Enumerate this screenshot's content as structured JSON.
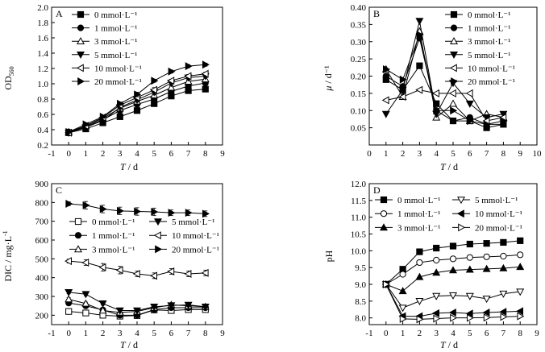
{
  "chart_data": [
    {
      "panel": "A",
      "type": "line",
      "xlabel_base": "T",
      "xlabel_unit": " / d",
      "ylabel_base": "OD",
      "ylabel_sub": "560",
      "xlim": [
        -1,
        9
      ],
      "ylim": [
        0.2,
        2.0
      ],
      "xticks": [
        -1,
        0,
        1,
        2,
        3,
        4,
        5,
        6,
        7,
        8,
        9
      ],
      "yticks": [
        0.2,
        0.4,
        0.6,
        0.8,
        1.0,
        1.2,
        1.4,
        1.6,
        1.8,
        2.0
      ],
      "ytick_decimals": 1,
      "legend_position": "top-left",
      "x": [
        0,
        1,
        2,
        3,
        4,
        5,
        6,
        7,
        8
      ],
      "series": [
        {
          "name": "0 mmol·L⁻¹",
          "marker": "square-filled",
          "values": [
            0.36,
            0.41,
            0.49,
            0.57,
            0.65,
            0.74,
            0.84,
            0.91,
            0.93
          ],
          "errors": [
            0.02,
            0.02,
            0.02,
            0.03,
            0.03,
            0.03,
            0.02,
            0.03,
            0.02
          ]
        },
        {
          "name": "1 mmol·L⁻¹",
          "marker": "circle-filled",
          "values": [
            0.37,
            0.44,
            0.53,
            0.65,
            0.73,
            0.8,
            0.9,
            0.97,
            1.01
          ],
          "errors": [
            0.02,
            0.02,
            0.02,
            0.03,
            0.03,
            0.03,
            0.02,
            0.02,
            0.02
          ]
        },
        {
          "name": "3 mmol·L⁻¹",
          "marker": "triangle-up-open",
          "values": [
            0.37,
            0.45,
            0.55,
            0.68,
            0.77,
            0.85,
            0.95,
            1.03,
            1.06
          ],
          "errors": [
            0.02,
            0.02,
            0.02,
            0.02,
            0.03,
            0.03,
            0.02,
            0.02,
            0.02
          ]
        },
        {
          "name": "5 mmol·L⁻¹",
          "marker": "triangle-down-filled",
          "values": [
            0.36,
            0.43,
            0.52,
            0.69,
            0.79,
            0.89,
            1.01,
            1.08,
            1.1
          ],
          "errors": [
            0.02,
            0.02,
            0.02,
            0.02,
            0.03,
            0.03,
            0.03,
            0.02,
            0.02
          ]
        },
        {
          "name": "10 mmol·L⁻¹",
          "marker": "triangle-left-open",
          "values": [
            0.36,
            0.45,
            0.56,
            0.72,
            0.82,
            0.92,
            1.04,
            1.1,
            1.13
          ],
          "errors": [
            0.02,
            0.02,
            0.02,
            0.02,
            0.03,
            0.03,
            0.02,
            0.02,
            0.02
          ]
        },
        {
          "name": "20 mmol·L⁻¹",
          "marker": "triangle-right-filled",
          "values": [
            0.37,
            0.47,
            0.57,
            0.74,
            0.86,
            1.04,
            1.16,
            1.23,
            1.25
          ],
          "errors": [
            0.02,
            0.02,
            0.02,
            0.02,
            0.03,
            0.02,
            0.02,
            0.02,
            0.02
          ]
        }
      ]
    },
    {
      "panel": "B",
      "type": "line",
      "xlabel_base": "T",
      "xlabel_unit": " / d",
      "ylabel_base": "μ",
      "ylabel_unit": " / d⁻¹",
      "xlim": [
        0,
        10
      ],
      "ylim": [
        0.0,
        0.4
      ],
      "xticks": [
        0,
        1,
        2,
        3,
        4,
        5,
        6,
        7,
        8,
        9,
        10
      ],
      "yticks": [
        0.05,
        0.1,
        0.15,
        0.2,
        0.25,
        0.3,
        0.35,
        0.4
      ],
      "ytick_decimals": 2,
      "legend_position": "top-right",
      "x": [
        1,
        2,
        3,
        4,
        5,
        6,
        7,
        8
      ],
      "series": [
        {
          "name": "0 mmol·L⁻¹",
          "marker": "square-filled",
          "values": [
            0.19,
            0.16,
            0.23,
            0.12,
            0.07,
            0.07,
            0.05,
            0.06
          ]
        },
        {
          "name": "1 mmol·L⁻¹",
          "marker": "circle-filled",
          "values": [
            0.2,
            0.17,
            0.31,
            0.1,
            0.07,
            0.08,
            0.06,
            0.06
          ]
        },
        {
          "name": "3 mmol·L⁻¹",
          "marker": "triangle-up-open",
          "values": [
            0.22,
            0.14,
            0.33,
            0.08,
            0.12,
            0.07,
            0.09,
            0.08
          ]
        },
        {
          "name": "5 mmol·L⁻¹",
          "marker": "triangle-down-filled",
          "values": [
            0.09,
            0.16,
            0.36,
            0.09,
            0.18,
            0.12,
            0.08,
            0.09
          ]
        },
        {
          "name": "10 mmol·L⁻¹",
          "marker": "triangle-left-open",
          "values": [
            0.13,
            0.14,
            0.16,
            0.15,
            0.15,
            0.15,
            0.07,
            0.08
          ]
        },
        {
          "name": "20 mmol·L⁻¹",
          "marker": "triangle-right-filled",
          "values": [
            0.22,
            0.19,
            0.32,
            0.1,
            0.1,
            0.07,
            0.06,
            0.07
          ]
        }
      ]
    },
    {
      "panel": "C",
      "type": "line",
      "xlabel_base": "T",
      "xlabel_unit": " / d",
      "ylabel_base": "DIC / mg·L",
      "ylabel_sup": "-1",
      "xlim": [
        -1,
        9
      ],
      "ylim": [
        150,
        900
      ],
      "xticks": [
        -1,
        0,
        1,
        2,
        3,
        4,
        5,
        6,
        7,
        8,
        9
      ],
      "yticks": [
        200,
        300,
        400,
        500,
        600,
        700,
        800,
        900
      ],
      "ytick_decimals": 0,
      "legend_position": "center",
      "x": [
        0,
        1,
        2,
        3,
        4,
        5,
        6,
        7,
        8
      ],
      "series": [
        {
          "name": "0 mmol·L⁻¹",
          "marker": "square-open",
          "values": [
            220,
            212,
            200,
            195,
            198,
            228,
            225,
            230,
            230
          ],
          "errors": [
            8,
            8,
            8,
            8,
            8,
            8,
            8,
            8,
            8
          ]
        },
        {
          "name": "1 mmol·L⁻¹",
          "marker": "circle-filled",
          "values": [
            265,
            250,
            228,
            200,
            200,
            230,
            240,
            240,
            240
          ],
          "errors": [
            8,
            8,
            8,
            8,
            8,
            8,
            8,
            8,
            8
          ]
        },
        {
          "name": "3 mmol·L⁻¹",
          "marker": "triangle-up-open",
          "values": [
            285,
            262,
            225,
            215,
            220,
            240,
            255,
            250,
            245
          ],
          "errors": [
            8,
            8,
            8,
            8,
            8,
            8,
            8,
            8,
            8
          ]
        },
        {
          "name": "5 mmol·L⁻¹",
          "marker": "triangle-down-filled",
          "values": [
            322,
            312,
            262,
            225,
            225,
            245,
            252,
            255,
            245
          ],
          "errors": [
            8,
            8,
            8,
            8,
            8,
            8,
            8,
            8,
            8
          ]
        },
        {
          "name": "10 mmol·L⁻¹",
          "marker": "triangle-left-open",
          "values": [
            488,
            480,
            455,
            440,
            420,
            410,
            433,
            420,
            425
          ],
          "errors": [
            10,
            15,
            20,
            20,
            15,
            15,
            15,
            15,
            15
          ]
        },
        {
          "name": "20 mmol·L⁻¹",
          "marker": "triangle-right-filled",
          "values": [
            793,
            785,
            765,
            755,
            752,
            750,
            745,
            745,
            740
          ],
          "errors": [
            10,
            20,
            20,
            20,
            20,
            20,
            15,
            15,
            15
          ]
        }
      ]
    },
    {
      "panel": "D",
      "type": "line",
      "xlabel_base": "T",
      "xlabel_unit": " / d",
      "ylabel_base": "pH",
      "xlim": [
        -1,
        9
      ],
      "ylim": [
        7.8,
        12.0
      ],
      "xticks": [
        -1,
        0,
        1,
        2,
        3,
        4,
        5,
        6,
        7,
        8,
        9
      ],
      "yticks": [
        8.0,
        8.5,
        9.0,
        9.5,
        10.0,
        10.5,
        11.0,
        11.5,
        12.0
      ],
      "ytick_decimals": 1,
      "legend_position": "top",
      "x": [
        0,
        1,
        2,
        3,
        4,
        5,
        6,
        7,
        8
      ],
      "series": [
        {
          "name": "0 mmol·L⁻¹",
          "marker": "square-filled",
          "values": [
            9.0,
            9.45,
            9.97,
            10.08,
            10.14,
            10.2,
            10.22,
            10.25,
            10.3
          ]
        },
        {
          "name": "1 mmol·L⁻¹",
          "marker": "circle-open",
          "values": [
            9.0,
            9.3,
            9.65,
            9.72,
            9.76,
            9.8,
            9.82,
            9.84,
            9.88
          ]
        },
        {
          "name": "3 mmol·L⁻¹",
          "marker": "triangle-up-filled",
          "values": [
            9.0,
            8.8,
            9.22,
            9.35,
            9.42,
            9.44,
            9.46,
            9.48,
            9.52
          ]
        },
        {
          "name": "5 mmol·L⁻¹",
          "marker": "triangle-down-open",
          "values": [
            9.0,
            8.3,
            8.5,
            8.65,
            8.67,
            8.65,
            8.57,
            8.72,
            8.78
          ]
        },
        {
          "name": "10 mmol·L⁻¹",
          "marker": "triangle-left-filled",
          "values": [
            9.0,
            8.05,
            8.05,
            8.14,
            8.16,
            8.13,
            8.16,
            8.18,
            8.2
          ]
        },
        {
          "name": "20 mmol·L⁻¹",
          "marker": "triangle-right-open",
          "values": [
            9.0,
            7.97,
            7.96,
            7.98,
            8.0,
            8.0,
            8.01,
            8.03,
            8.05
          ]
        }
      ]
    }
  ]
}
